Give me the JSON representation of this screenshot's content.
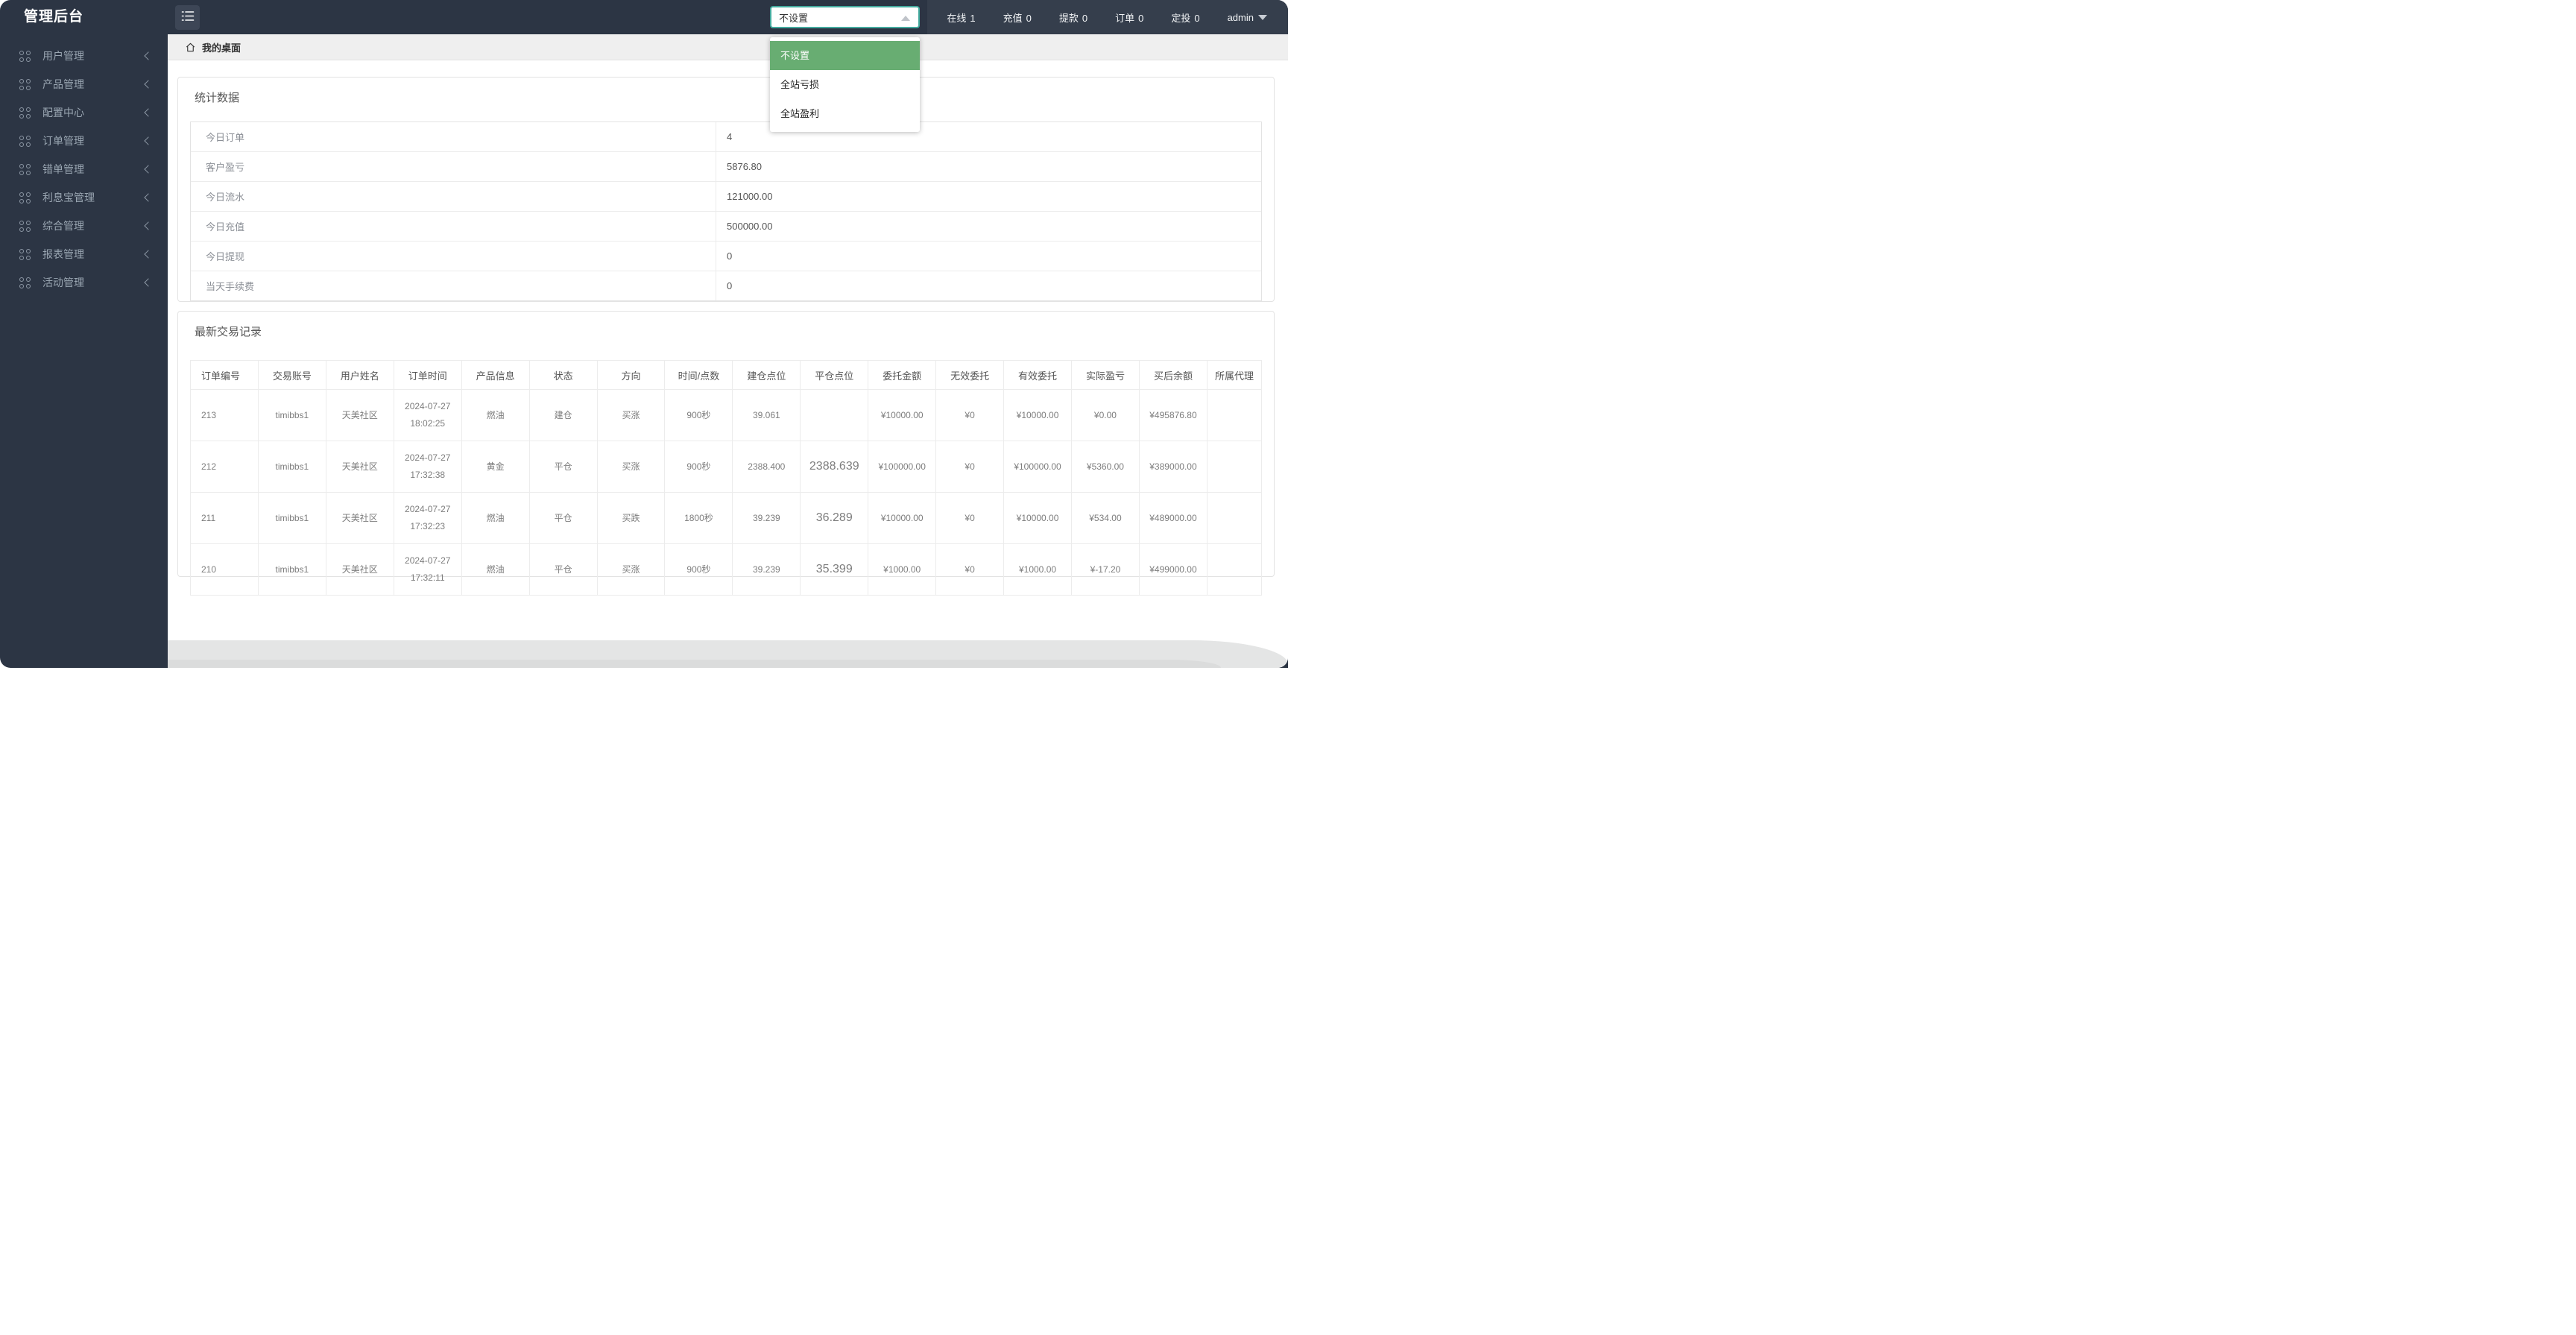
{
  "app": {
    "title": "管理后台"
  },
  "topbar": {
    "select": {
      "value": "不设置",
      "options": [
        {
          "label": "不设置",
          "selected": true
        },
        {
          "label": "全站亏损",
          "selected": false
        },
        {
          "label": "全站盈利",
          "selected": false
        }
      ]
    },
    "stats": [
      {
        "label": "在线",
        "value": "1"
      },
      {
        "label": "充值",
        "value": "0"
      },
      {
        "label": "提款",
        "value": "0"
      },
      {
        "label": "订单",
        "value": "0"
      },
      {
        "label": "定投",
        "value": "0"
      }
    ],
    "user": {
      "name": "admin"
    }
  },
  "sidebar": {
    "items": [
      {
        "label": "用户管理"
      },
      {
        "label": "产品管理"
      },
      {
        "label": "配置中心"
      },
      {
        "label": "订单管理"
      },
      {
        "label": "错单管理"
      },
      {
        "label": "利息宝管理"
      },
      {
        "label": "综合管理"
      },
      {
        "label": "报表管理"
      },
      {
        "label": "活动管理"
      }
    ]
  },
  "breadcrumb": {
    "label": "我的桌面"
  },
  "cards": {
    "stats": {
      "title": "统计数据",
      "rows": [
        {
          "label": "今日订单",
          "value": "4"
        },
        {
          "label": "客户盈亏",
          "value": "5876.80"
        },
        {
          "label": "今日流水",
          "value": "121000.00"
        },
        {
          "label": "今日充值",
          "value": "500000.00"
        },
        {
          "label": "今日提现",
          "value": "0"
        },
        {
          "label": "当天手续费",
          "value": "0"
        }
      ]
    },
    "trades": {
      "title": "最新交易记录",
      "columns": [
        "订单编号",
        "交易账号",
        "用户姓名",
        "订单时间",
        "产品信息",
        "状态",
        "方向",
        "时间/点数",
        "建仓点位",
        "平仓点位",
        "委托金额",
        "无效委托",
        "有效委托",
        "实际盈亏",
        "买后余额",
        "所属代理"
      ],
      "rows": [
        {
          "cells": [
            "213",
            "timibbs1",
            "天美社区",
            "2024-07-27 18:02:25",
            "燃油",
            "建仓",
            "买涨",
            "900秒",
            "39.061",
            "",
            "¥10000.00",
            "¥0",
            "¥10000.00",
            "¥0.00",
            "¥495876.80",
            ""
          ],
          "close_class": ""
        },
        {
          "cells": [
            "212",
            "timibbs1",
            "天美社区",
            "2024-07-27 17:32:38",
            "黄金",
            "平仓",
            "买涨",
            "900秒",
            "2388.400",
            "2388.639",
            "¥100000.00",
            "¥0",
            "¥100000.00",
            "¥5360.00",
            "¥389000.00",
            ""
          ],
          "close_class": "red"
        },
        {
          "cells": [
            "211",
            "timibbs1",
            "天美社区",
            "2024-07-27 17:32:23",
            "燃油",
            "平仓",
            "买跌",
            "1800秒",
            "39.239",
            "36.289",
            "¥10000.00",
            "¥0",
            "¥10000.00",
            "¥534.00",
            "¥489000.00",
            ""
          ],
          "close_class": "green"
        },
        {
          "cells": [
            "210",
            "timibbs1",
            "天美社区",
            "2024-07-27 17:32:11",
            "燃油",
            "平仓",
            "买涨",
            "900秒",
            "39.239",
            "35.399",
            "¥1000.00",
            "¥0",
            "¥1000.00",
            "¥-17.20",
            "¥499000.00",
            ""
          ],
          "close_class": "green"
        }
      ]
    }
  },
  "colors": {
    "accent_teal": "#43aa9e",
    "dropdown_selected_green": "#68ad72",
    "loss_red": "#d2372d",
    "profit_green": "#4caf50",
    "sidebar_dark": "#2c3544"
  }
}
